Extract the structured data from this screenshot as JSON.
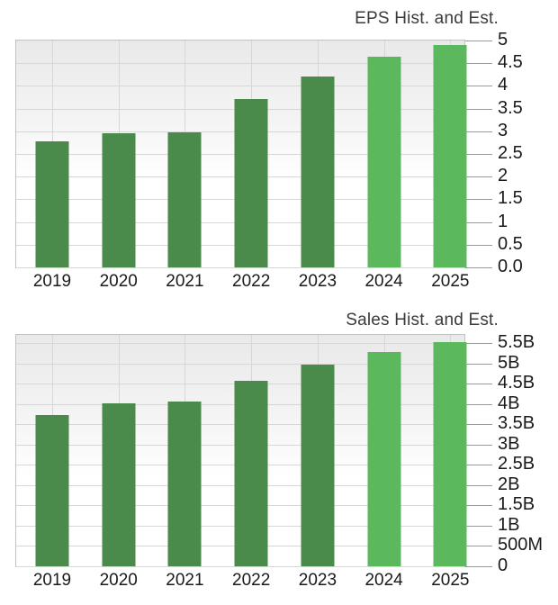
{
  "chart_data": [
    {
      "type": "bar",
      "title": "EPS Hist. and Est.",
      "categories": [
        "2019",
        "2020",
        "2021",
        "2022",
        "2023",
        "2024",
        "2025"
      ],
      "values": [
        2.77,
        2.95,
        2.98,
        3.72,
        4.21,
        4.65,
        4.9
      ],
      "estimate_start_index": 5,
      "ylim": [
        0,
        5
      ],
      "ytick_values": [
        5,
        4.5,
        4,
        3.5,
        3,
        2.5,
        2,
        1.5,
        1,
        0.5,
        0
      ],
      "ytick_labels": [
        "5",
        "4.5",
        "4",
        "3.5",
        "3",
        "2.5",
        "2",
        "1.5",
        "1",
        "0.5",
        "0.0"
      ],
      "xlabel": "",
      "ylabel": "",
      "grid": true,
      "legend": "none",
      "colors": {
        "historical": "#4A8A4A",
        "estimate": "#5CB85C"
      }
    },
    {
      "type": "bar",
      "title": "Sales Hist. and Est.",
      "categories": [
        "2019",
        "2020",
        "2021",
        "2022",
        "2023",
        "2024",
        "2025"
      ],
      "values": [
        3.73,
        4.02,
        4.06,
        4.58,
        4.97,
        5.28,
        5.53
      ],
      "estimate_start_index": 5,
      "ylim": [
        0,
        5.7
      ],
      "ytick_values": [
        5.5,
        5,
        4.5,
        4,
        3.5,
        3,
        2.5,
        2,
        1.5,
        1,
        0.5,
        0
      ],
      "ytick_labels": [
        "5.5B",
        "5B",
        "4.5B",
        "4B",
        "3.5B",
        "3B",
        "2.5B",
        "2B",
        "1.5B",
        "1B",
        "500M",
        "0"
      ],
      "xlabel": "",
      "ylabel": "",
      "grid": true,
      "legend": "none",
      "colors": {
        "historical": "#4A8A4A",
        "estimate": "#5CB85C"
      }
    }
  ]
}
